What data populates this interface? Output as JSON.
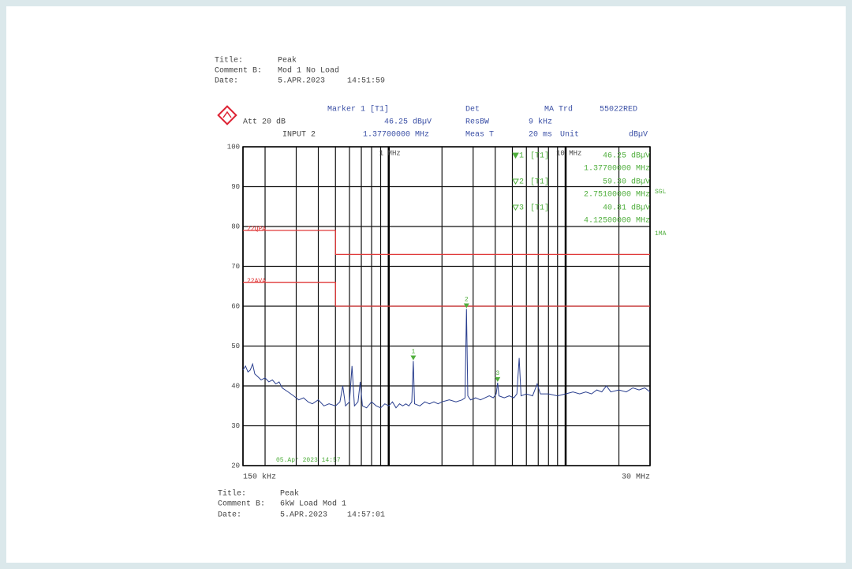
{
  "header": {
    "title_label": "Title:",
    "title": "Peak",
    "comment_label": "Comment B:",
    "comment": "Mod 1 No Load",
    "date_label": "Date:",
    "date": "5.APR.2023",
    "time": "14:51:59"
  },
  "instrument": {
    "marker": "Marker 1 [T1]",
    "att": "Att 20 dB",
    "input": "INPUT 2",
    "det_label": "Det",
    "det": "MA Trd",
    "standard": "55022RED",
    "rbw_label": "ResBW",
    "rbw": "9 kHz",
    "meas_label": "Meas T",
    "meas": "20 ms",
    "unit_label": "Unit",
    "unit": "dBµV",
    "sgl": "SGL",
    "mode": "1MA",
    "stamp": "05.Apr 2023 14:57"
  },
  "chart_data": {
    "type": "line",
    "log_x": true,
    "grid": true,
    "color": "#2a3f8f",
    "xlim": [
      0.15,
      30
    ],
    "ylim": [
      20,
      100
    ],
    "yticks": [
      20,
      30,
      40,
      50,
      60,
      70,
      80,
      90,
      100
    ],
    "xticks": [
      {
        "value": 0.15,
        "label": "150 kHz"
      },
      {
        "value": 1,
        "label": "1 MHz"
      },
      {
        "value": 10,
        "label": "10 MHz"
      },
      {
        "value": 30,
        "label": "30 MHz"
      }
    ],
    "xgrid": [
      0.2,
      0.3,
      0.4,
      0.5,
      0.6,
      0.7,
      0.8,
      0.9,
      2,
      3,
      4,
      5,
      6,
      7,
      8,
      9,
      20
    ],
    "x": [
      0.15,
      0.155,
      0.16,
      0.165,
      0.17,
      0.175,
      0.18,
      0.19,
      0.2,
      0.21,
      0.22,
      0.23,
      0.24,
      0.25,
      0.27,
      0.29,
      0.31,
      0.33,
      0.35,
      0.37,
      0.4,
      0.43,
      0.46,
      0.5,
      0.53,
      0.55,
      0.57,
      0.6,
      0.62,
      0.64,
      0.67,
      0.69,
      0.71,
      0.75,
      0.8,
      0.85,
      0.9,
      0.95,
      1.0,
      1.05,
      1.1,
      1.15,
      1.2,
      1.25,
      1.3,
      1.35,
      1.377,
      1.4,
      1.5,
      1.6,
      1.7,
      1.8,
      1.9,
      2.0,
      2.2,
      2.4,
      2.6,
      2.7,
      2.751,
      2.8,
      2.9,
      3.1,
      3.3,
      3.5,
      3.7,
      3.9,
      4.05,
      4.125,
      4.2,
      4.5,
      4.8,
      5.1,
      5.3,
      5.46,
      5.6,
      6.0,
      6.5,
      6.9,
      7.2,
      8,
      9,
      10,
      11,
      12,
      13,
      14,
      15,
      16,
      17,
      18,
      20,
      22,
      24,
      26,
      28,
      30
    ],
    "values": [
      44,
      45,
      43.5,
      44,
      45.5,
      43,
      42.5,
      41.5,
      42,
      41,
      41.5,
      40.5,
      41,
      39.5,
      38.5,
      37.5,
      36.5,
      37,
      36,
      35.5,
      36.5,
      35,
      35.5,
      35,
      36,
      40,
      35,
      36,
      45,
      35,
      36,
      41,
      35,
      34.5,
      36,
      35,
      34.5,
      35.5,
      35,
      36,
      34.5,
      35.5,
      35,
      35.5,
      35,
      36,
      46.25,
      35.5,
      35,
      36,
      35.5,
      36,
      35.5,
      36,
      36.5,
      36,
      36.5,
      37,
      59.3,
      37.5,
      36.5,
      37,
      36.5,
      37,
      37.5,
      37,
      38,
      40.81,
      37.5,
      37,
      37.5,
      37,
      38,
      47,
      37.5,
      38,
      37.5,
      40.5,
      38,
      38,
      37.5,
      38,
      38.5,
      38,
      38.5,
      38,
      39,
      38.5,
      40,
      38.5,
      39,
      38.5,
      39.5,
      39,
      39.5,
      38.5
    ],
    "limits": [
      {
        "name": "22QPA",
        "color": "#e03a3a",
        "x": [
          0.15,
          0.5,
          0.5,
          30
        ],
        "values": [
          79,
          79,
          73,
          73
        ]
      },
      {
        "name": "22AVA",
        "color": "#e03a3a",
        "x": [
          0.15,
          0.5,
          0.5,
          30
        ],
        "values": [
          66,
          66,
          60,
          60
        ]
      }
    ],
    "markers": [
      {
        "id": "1",
        "tag": "[T1]",
        "x": 1.377,
        "value": 46.25,
        "readout": "46.25 dBµV",
        "freq": "1.37700000 MHz"
      },
      {
        "id": "2",
        "tag": "[T1]",
        "x": 2.751,
        "value": 59.3,
        "readout": "59.30 dBµV",
        "freq": "2.75100000 MHz"
      },
      {
        "id": "3",
        "tag": "[T1]",
        "x": 4.125,
        "value": 40.81,
        "readout": "40.81 dBµV",
        "freq": "4.12500000 MHz"
      }
    ]
  },
  "footer": {
    "title_label": "Title:",
    "title": "Peak",
    "comment_label": "Comment B:",
    "comment": "6kW Load Mod 1",
    "date_label": "Date:",
    "date": "5.APR.2023",
    "time": "14:57:01"
  }
}
